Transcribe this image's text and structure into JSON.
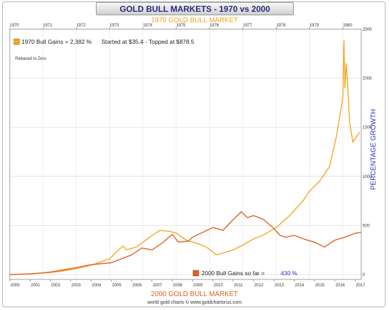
{
  "chart_data": {
    "type": "line",
    "title": "GOLD BULL MARKETS - 1970 vs 2000",
    "top_axis_title": "1970 GOLD BULL MARKET",
    "bottom_axis_title": "2000 GOLD BULL MARKET",
    "ylabel": "PERCENTAGE GROWTH",
    "ylim": [
      -50,
      2500
    ],
    "y_ticks": [
      0,
      500,
      1000,
      1500,
      2000,
      2500
    ],
    "note": "Rebased to Zero",
    "credit": "world gold charts © www.goldchartsrus.com",
    "top_axis": {
      "range": [
        1970.0,
        1980.55
      ],
      "ticks": [
        "1970",
        "1971",
        "1972",
        "1973",
        "1974",
        "1975",
        "1976",
        "1977",
        "1978",
        "1979",
        "1980"
      ]
    },
    "bottom_axis": {
      "range": [
        2000.0,
        2017.3
      ],
      "ticks": [
        "2000",
        "2001",
        "2002",
        "2003",
        "2004",
        "2005",
        "2006",
        "2007",
        "2008",
        "2009",
        "2010",
        "2011",
        "2012",
        "2013",
        "2014",
        "2015",
        "2016",
        "2017"
      ]
    },
    "legend_top": {
      "label": "1970 Bull Gains = 2,382 %",
      "text": "Started at $35.4 - Topped at $878.5",
      "placement": "top-left"
    },
    "legend_bottom": {
      "label": "2000 Bull Gains so far = ",
      "value": "430 %",
      "placement": "bottom-right"
    },
    "series": [
      {
        "name": "1970 Bull Gains",
        "color": "#f5a623",
        "x": [
          1970.0,
          1970.5,
          1971.0,
          1971.5,
          1972.0,
          1972.5,
          1972.9,
          1973.0,
          1973.2,
          1973.4,
          1973.5,
          1973.8,
          1974.0,
          1974.2,
          1974.5,
          1974.8,
          1975.0,
          1975.3,
          1975.6,
          1975.9,
          1976.2,
          1976.5,
          1976.7,
          1977.0,
          1977.3,
          1977.6,
          1978.0,
          1978.4,
          1978.8,
          1979.0,
          1979.3,
          1979.6,
          1979.8,
          1980.0,
          1980.03,
          1980.06,
          1980.1,
          1980.15,
          1980.2,
          1980.3,
          1980.4,
          1980.5
        ],
        "y": [
          0,
          5,
          15,
          30,
          60,
          100,
          150,
          160,
          230,
          290,
          250,
          280,
          330,
          380,
          450,
          440,
          420,
          350,
          320,
          280,
          200,
          230,
          250,
          300,
          360,
          400,
          480,
          600,
          750,
          850,
          950,
          1100,
          1400,
          1800,
          2382,
          1900,
          2150,
          1900,
          1550,
          1350,
          1400,
          1450
        ]
      },
      {
        "name": "2000 Bull Gains",
        "color": "#e06020",
        "x": [
          2000.0,
          2001.0,
          2002.0,
          2003.0,
          2004.0,
          2005.0,
          2006.0,
          2006.5,
          2007.0,
          2007.5,
          2008.0,
          2008.3,
          2008.8,
          2009.0,
          2009.5,
          2010.0,
          2010.5,
          2011.0,
          2011.4,
          2011.7,
          2012.0,
          2012.5,
          2013.0,
          2013.3,
          2013.6,
          2014.0,
          2014.5,
          2015.0,
          2015.5,
          2016.0,
          2016.5,
          2017.0,
          2017.3
        ],
        "y": [
          0,
          5,
          25,
          60,
          100,
          120,
          200,
          270,
          250,
          320,
          410,
          330,
          340,
          380,
          430,
          480,
          450,
          560,
          640,
          580,
          600,
          560,
          470,
          400,
          380,
          400,
          360,
          330,
          280,
          350,
          380,
          420,
          430
        ]
      }
    ]
  }
}
